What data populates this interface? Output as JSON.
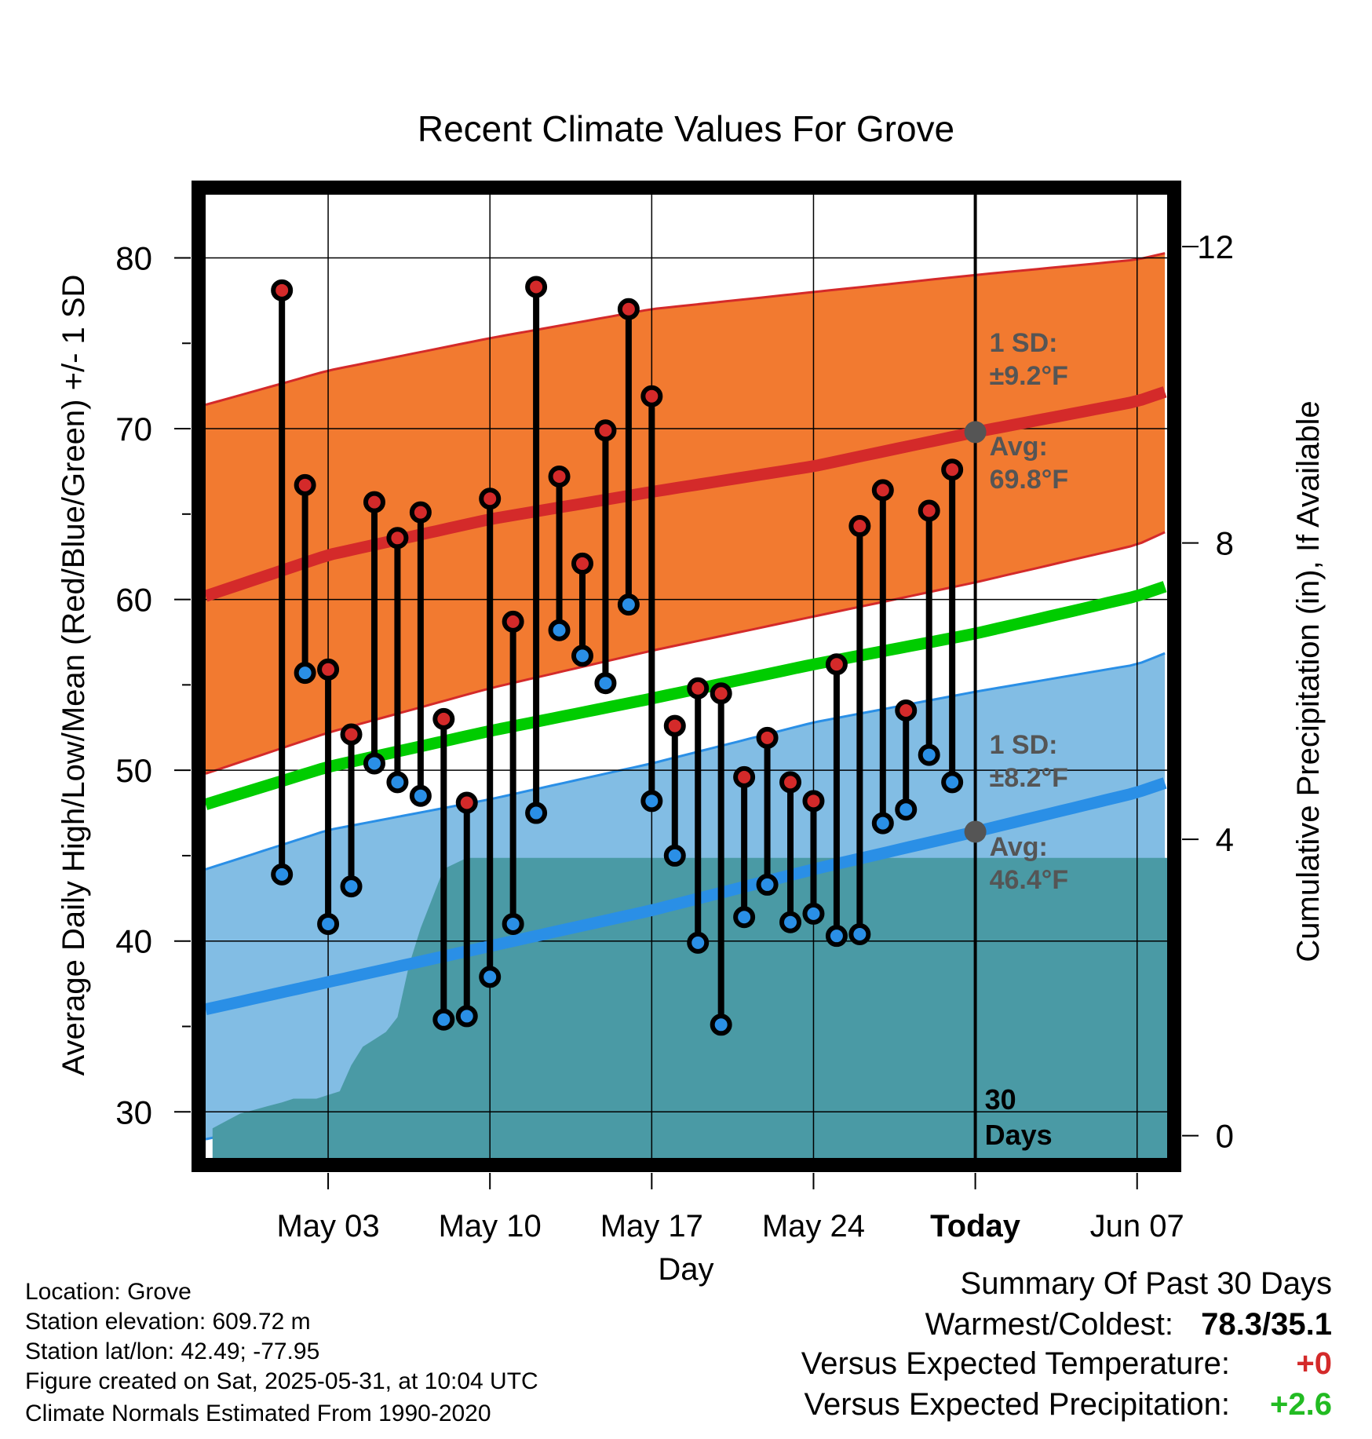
{
  "chart_data": {
    "type": "line",
    "title": "Recent Climate Values For Grove",
    "xlabel": "Day",
    "ylabel": "Average Daily High/Low/Mean (Red/Blue/Green) +/- 1 SD",
    "y2label": "Cumulative Precipitation (in), If Available",
    "ylim": [
      27.3,
      83.7
    ],
    "y2lim": [
      -0.3,
      12.7
    ],
    "xlim": [
      -3.3,
      38.3
    ],
    "x_ticks": [
      {
        "day": 2,
        "label": "May 03",
        "bold": false
      },
      {
        "day": 9,
        "label": "May 10",
        "bold": false
      },
      {
        "day": 16,
        "label": "May 17",
        "bold": false
      },
      {
        "day": 23,
        "label": "May 24",
        "bold": false
      },
      {
        "day": 30,
        "label": "Today",
        "bold": true
      },
      {
        "day": 37,
        "label": "Jun 07",
        "bold": false
      }
    ],
    "y_ticks": [
      30,
      40,
      50,
      60,
      70,
      80
    ],
    "y2_ticks": [
      0,
      4,
      8,
      12
    ],
    "grid": true,
    "today_day": 30,
    "today_label": [
      "30",
      "Days"
    ],
    "normals": {
      "days": [
        -3.3,
        2,
        9,
        16,
        23,
        30,
        37,
        38.3
      ],
      "high_avg": [
        60.2,
        62.6,
        64.7,
        66.3,
        67.8,
        69.8,
        71.6,
        72.2
      ],
      "high_upper": [
        71.4,
        73.4,
        75.3,
        77.0,
        78.0,
        79.0,
        79.9,
        80.3
      ],
      "high_lower": [
        49.8,
        52.2,
        54.8,
        57.0,
        59.0,
        61.0,
        63.2,
        64.0
      ],
      "mean_avg": [
        48.0,
        50.2,
        52.3,
        54.2,
        56.2,
        58.0,
        60.2,
        60.8
      ],
      "low_avg": [
        36.0,
        37.6,
        39.7,
        41.8,
        44.2,
        46.4,
        48.7,
        49.3
      ],
      "low_upper": [
        44.2,
        46.5,
        48.3,
        50.4,
        52.8,
        54.6,
        56.2,
        56.9
      ],
      "low_lower": [
        28.4,
        29.9,
        31.8,
        33.8,
        36.0,
        38.2,
        40.8,
        41.3
      ]
    },
    "series": [
      {
        "name": "High",
        "color": "#d42a2a",
        "days": [
          0,
          1,
          2,
          3,
          4,
          5,
          6,
          7,
          8,
          9,
          10,
          11,
          12,
          13,
          14,
          15,
          16,
          17,
          18,
          19,
          20,
          21,
          22,
          23,
          24,
          25,
          26,
          27,
          28,
          29
        ],
        "values": [
          78.1,
          66.7,
          55.9,
          52.1,
          65.7,
          63.6,
          65.1,
          53.0,
          48.1,
          65.9,
          58.7,
          78.3,
          67.2,
          62.1,
          69.9,
          77.0,
          71.9,
          52.6,
          54.8,
          54.5,
          49.6,
          51.9,
          49.3,
          48.2,
          56.2,
          64.3,
          66.4,
          53.5,
          65.2,
          67.6
        ]
      },
      {
        "name": "Low",
        "color": "#2a8fe6",
        "days": [
          0,
          1,
          2,
          3,
          4,
          5,
          6,
          7,
          8,
          9,
          10,
          11,
          12,
          13,
          14,
          15,
          16,
          17,
          18,
          19,
          20,
          21,
          22,
          23,
          24,
          25,
          26,
          27,
          28,
          29
        ],
        "values": [
          43.9,
          55.7,
          41.0,
          43.2,
          50.4,
          49.3,
          48.5,
          35.4,
          35.6,
          37.9,
          41.0,
          47.5,
          58.2,
          56.7,
          55.1,
          59.7,
          48.2,
          45.0,
          39.9,
          35.1,
          41.4,
          43.3,
          41.1,
          41.6,
          40.3,
          40.4,
          46.9,
          47.7,
          50.9,
          49.3
        ]
      }
    ],
    "precip": {
      "name": "Cumulative Precipitation",
      "color": "#4a9aa5",
      "days": [
        -3.0,
        -2.4,
        -1.8,
        -1.2,
        -0.6,
        0.0,
        0.5,
        1.0,
        1.5,
        2.0,
        2.5,
        3.0,
        3.5,
        4.0,
        4.5,
        5.0,
        5.5,
        6.0,
        7.0,
        8.0,
        9.0,
        10.0,
        11.0,
        12.0,
        13.0,
        14.0,
        15.0,
        16.0,
        17.0,
        18.0,
        19.0,
        19.4,
        20.0,
        21.0,
        22.0,
        23.0,
        24.0,
        25.0,
        26.0,
        27.0,
        28.0,
        29.0,
        30.0,
        31.0,
        32.0,
        33.0,
        34.0,
        35.0,
        36.0,
        37.0,
        38.3
      ],
      "values": [
        0.1,
        0.2,
        0.3,
        0.35,
        0.4,
        0.45,
        0.5,
        0.5,
        0.5,
        0.55,
        0.6,
        0.95,
        1.2,
        1.3,
        1.4,
        1.6,
        2.3,
        2.8,
        3.6,
        3.75,
        3.75,
        3.75,
        3.75,
        3.75,
        3.75,
        3.75,
        3.75,
        3.75,
        3.75,
        3.75,
        3.75,
        3.75,
        3.75,
        3.75,
        3.75,
        3.75,
        3.75,
        3.75,
        3.75,
        3.75,
        3.75,
        3.75,
        3.75,
        3.75,
        3.75,
        3.75,
        3.75,
        3.75,
        3.75,
        3.75,
        3.75
      ]
    },
    "annotations": {
      "high_sd": [
        "1 SD:",
        "±9.2°F"
      ],
      "high_avg": [
        "Avg:",
        "69.8°F"
      ],
      "low_sd": [
        "1 SD:",
        "±8.2°F"
      ],
      "low_avg": [
        "Avg:",
        "46.4°F"
      ]
    },
    "colors": {
      "high_band": "#f27a30",
      "high_line": "#d42a2a",
      "low_band": "#82bde4",
      "low_line": "#2a8fe6",
      "mean_line": "#00cc00",
      "precip_fill": "#4a9aa5",
      "annotation_text": "#555555"
    }
  },
  "footer": {
    "location": "Location: Grove",
    "elevation": "Station elevation: 609.72 m",
    "latlon": "Station lat/lon: 42.49; -77.95",
    "created": "Figure created on Sat, 2025-05-31, at 10:04 UTC",
    "normals": "Climate Normals Estimated From 1990-2020"
  },
  "summary": {
    "title": "Summary Of Past 30 Days",
    "warm_cold_label": "Warmest/Coldest:",
    "warm_cold_value": "78.3/35.1",
    "temp_label": "Versus Expected Temperature:",
    "temp_value": "+0",
    "temp_color": "#d42a2a",
    "precip_label": "Versus Expected Precipitation:",
    "precip_value": "+2.6",
    "precip_color": "#22bb22"
  }
}
